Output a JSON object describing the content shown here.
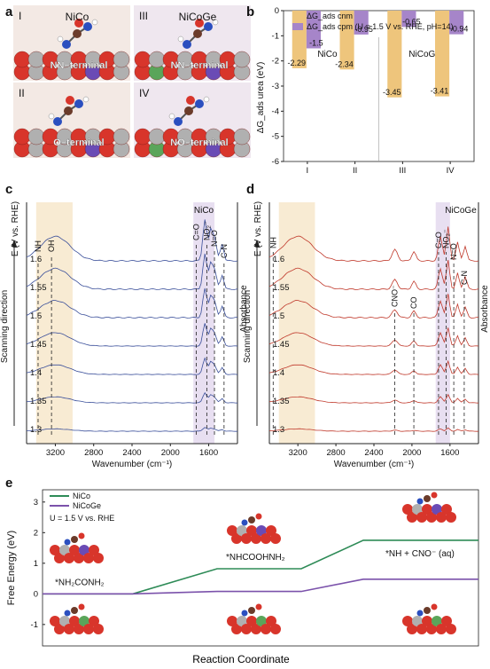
{
  "panels": {
    "a": {
      "label": "a",
      "tiles": [
        {
          "roman": "I",
          "name": "NiCo",
          "desc": "NN–terminal"
        },
        {
          "roman": "III",
          "name": "NiCoGe",
          "desc": "NN–terminal"
        },
        {
          "roman": "II",
          "name": "",
          "desc": "O–terminal"
        },
        {
          "roman": "IV",
          "name": "",
          "desc": "NO–terminal"
        }
      ]
    }
  },
  "chart_data": [
    {
      "id": "b",
      "panel_label": "b",
      "type": "bar",
      "ylabel": "ΔG_ads urea (eV)",
      "ylim": [
        -6,
        0
      ],
      "yticks": [
        "-6",
        "-5",
        "-4",
        "-3",
        "-2",
        "-1",
        "0"
      ],
      "categories": [
        "I",
        "II",
        "III",
        "IV"
      ],
      "groups": [
        "NiCo",
        "NiCoGe"
      ],
      "legend": [
        "ΔG_ads cnm",
        "ΔG_ads cpm (U = 1.5 V vs. RHE, pH=14)"
      ],
      "series": [
        {
          "name": "ΔG_ads cnm",
          "color": "#eec57c",
          "values": [
            -2.29,
            -2.34,
            -3.45,
            -3.41
          ],
          "labels": [
            "-2.29",
            "-2.34",
            "-3.45",
            "-3.41"
          ]
        },
        {
          "name": "ΔG_ads cpm (U = 1.5 V vs. RHE, pH=14)",
          "color": "#a685c9",
          "values": [
            -1.5,
            -0.95,
            -0.65,
            -0.94
          ],
          "labels": [
            "-1.5",
            "-0.95",
            "-0.65",
            "-0.94"
          ]
        }
      ]
    },
    {
      "id": "c",
      "panel_label": "c",
      "type": "line",
      "title": "NiCo",
      "xlabel": "Wavenumber (cm⁻¹)",
      "ylabel": "E (V vs. RHE)",
      "side_label": "Scanning direction",
      "right_label": "Absorbance",
      "xlim": [
        3500,
        1300
      ],
      "xticks": [
        "3200",
        "2800",
        "2400",
        "2000",
        "1600"
      ],
      "potentials": [
        "1.3",
        "1.35",
        "1.4",
        "1.45",
        "1.5",
        "1.55",
        "1.6"
      ],
      "annotations": [
        "NH",
        "OH",
        "C=O",
        "NO₂⁻",
        "N=O",
        "C-N"
      ],
      "line_color": "#3a4f9a"
    },
    {
      "id": "d",
      "panel_label": "d",
      "type": "line",
      "title": "NiCoGe",
      "xlabel": "Wavenumber (cm⁻¹)",
      "ylabel": "E (V vs. RHE)",
      "side_label": "Scanning direction",
      "right_label": "Absorbance",
      "xlim": [
        3500,
        1300
      ],
      "xticks": [
        "3200",
        "2800",
        "2400",
        "2000",
        "1600"
      ],
      "potentials": [
        "1.3",
        "1.35",
        "1.4",
        "1.45",
        "1.5",
        "1.55",
        "1.6"
      ],
      "annotations": [
        "NH",
        "CNO⁻",
        "CO",
        "C=O",
        "NO₂⁻",
        "N=O",
        "C-N"
      ],
      "line_color": "#c0392b"
    },
    {
      "id": "e",
      "panel_label": "e",
      "type": "line",
      "xlabel": "Reaction Coordinate",
      "ylabel": "Free Energy (eV)",
      "ylim": [
        -1.7,
        3.4
      ],
      "yticks": [
        "-1",
        "0",
        "1",
        "2",
        "3"
      ],
      "condition": "U = 1.5 V vs. RHE",
      "steps": [
        "*NH₂CONH₂",
        "*NHCOOHNH₂",
        "*NH + CNO⁻ (aq)"
      ],
      "series": [
        {
          "name": "NiCo",
          "color": "#2e8b57",
          "values": [
            0,
            0.82,
            1.75
          ]
        },
        {
          "name": "NiCoGe",
          "color": "#7b52ab",
          "values": [
            0,
            0.08,
            0.48
          ]
        }
      ]
    }
  ]
}
